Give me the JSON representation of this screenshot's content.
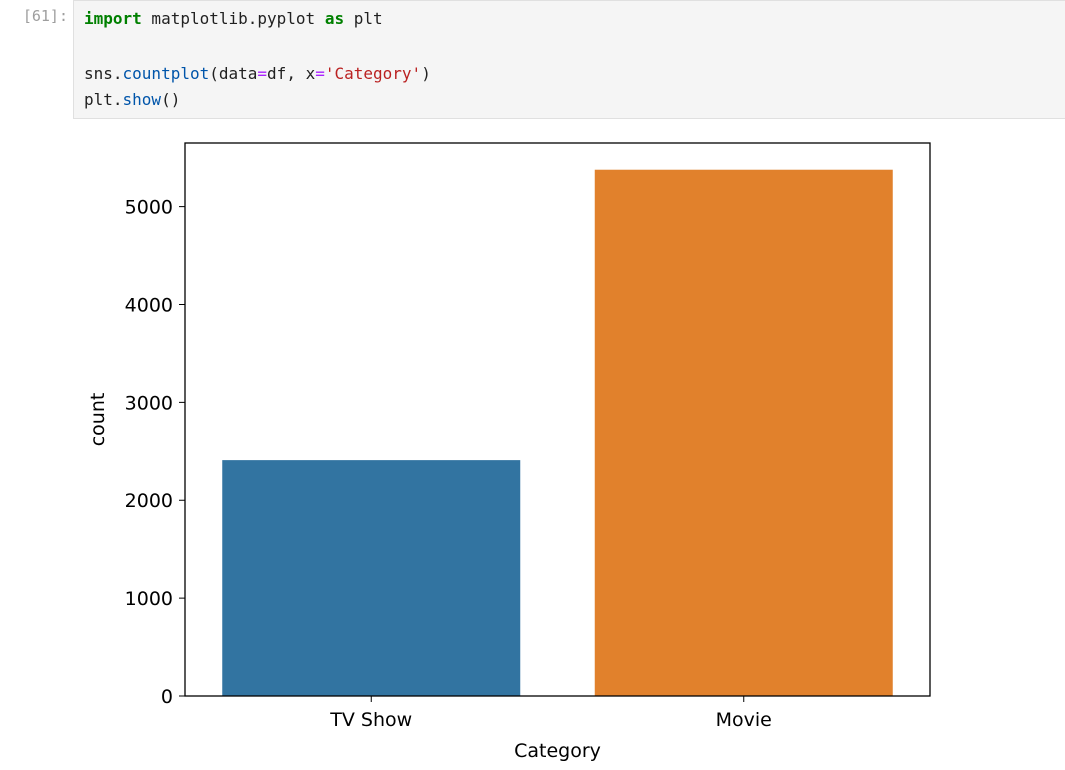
{
  "cell": {
    "prompt": "[61]:",
    "code": {
      "line1": {
        "kw1": "import",
        "mid": " matplotlib.pyplot ",
        "kw2": "as",
        "end": " plt"
      },
      "line2": {
        "a": "sns.",
        "fn": "countplot",
        "b": "(data",
        "eq1": "=",
        "c": "df, x",
        "eq2": "=",
        "str": "'Category'",
        "d": ")"
      },
      "line3": {
        "a": "plt.",
        "fn": "show",
        "b": "()"
      }
    }
  },
  "chart_data": {
    "type": "bar",
    "categories": [
      "TV Show",
      "Movie"
    ],
    "values": [
      2410,
      5377
    ],
    "colors": [
      "#3274a1",
      "#e1812c"
    ],
    "xlabel": "Category",
    "ylabel": "count",
    "ylim": [
      0,
      5650
    ],
    "yticks": [
      0,
      1000,
      2000,
      3000,
      4000,
      5000
    ],
    "grid": false
  }
}
